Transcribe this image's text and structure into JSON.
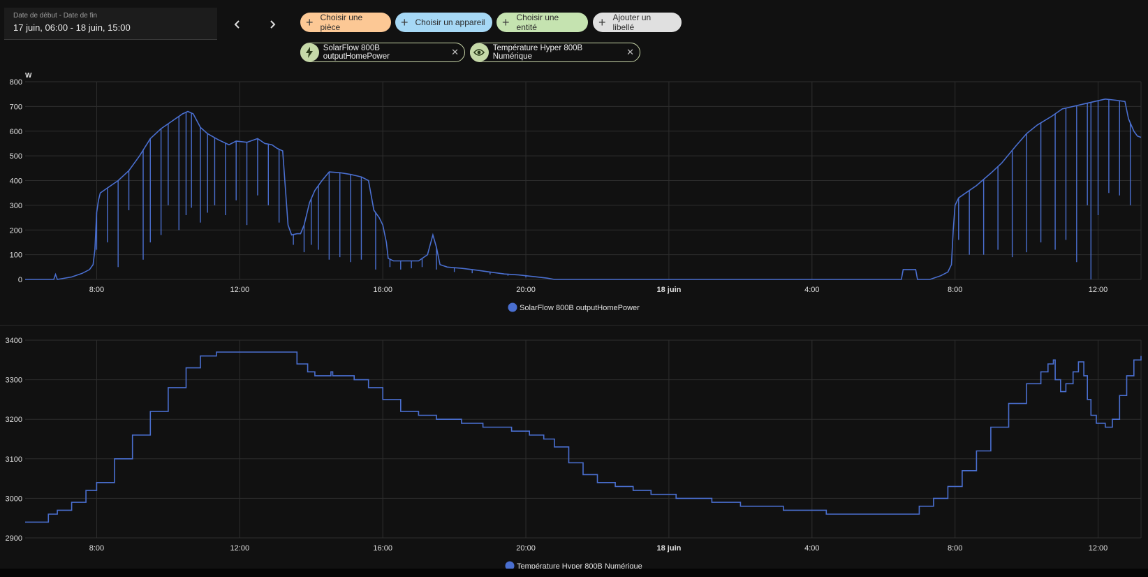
{
  "date_range": {
    "label": "Date de début - Date de fin",
    "value": "17 juin, 06:00 - 18 juin, 15:00"
  },
  "filters": {
    "room": "Choisir une pièce",
    "device": "Choisir un appareil",
    "entity": "Choisir une entité",
    "label": "Ajouter un libellé"
  },
  "selected": [
    {
      "name": "SolarFlow 800B outputHomePower",
      "icon": "lightning-icon"
    },
    {
      "name": "Température Hyper 800B Numérique",
      "icon": "eye-icon"
    }
  ],
  "colors": {
    "series": "#4a6fd0",
    "room_chip": "#fcc895",
    "device_chip": "#a6d8f5",
    "entity_chip": "#c5e3b0",
    "label_chip": "#e0e0e0"
  },
  "chart_data": [
    {
      "type": "line",
      "unit": "W",
      "ylim": [
        0,
        800
      ],
      "yticks": [
        "0",
        "100",
        "200",
        "300",
        "400",
        "500",
        "600",
        "700",
        "800"
      ],
      "xticks": [
        {
          "h": 8,
          "label": "8:00",
          "bold": false
        },
        {
          "h": 12,
          "label": "12:00",
          "bold": false
        },
        {
          "h": 16,
          "label": "16:00",
          "bold": false
        },
        {
          "h": 20,
          "label": "20:00",
          "bold": false
        },
        {
          "h": 24,
          "label": "18 juin",
          "bold": true
        },
        {
          "h": 28,
          "label": "4:00",
          "bold": false
        },
        {
          "h": 32,
          "label": "8:00",
          "bold": false
        },
        {
          "h": 36,
          "label": "12:00",
          "bold": false
        }
      ],
      "legend": "SolarFlow 800B outputHomePower",
      "series": [
        {
          "name": "SolarFlow 800B outputHomePower",
          "points": [
            [
              6.0,
              0
            ],
            [
              6.8,
              0
            ],
            [
              6.85,
              20
            ],
            [
              6.9,
              0
            ],
            [
              7.3,
              10
            ],
            [
              7.6,
              25
            ],
            [
              7.8,
              40
            ],
            [
              7.9,
              60
            ],
            [
              7.95,
              120
            ],
            [
              8.0,
              270
            ],
            [
              8.05,
              320
            ],
            [
              8.1,
              350
            ],
            [
              8.3,
              370
            ],
            [
              8.6,
              400
            ],
            [
              8.9,
              440
            ],
            [
              9.2,
              500
            ],
            [
              9.5,
              570
            ],
            [
              9.8,
              610
            ],
            [
              10.1,
              640
            ],
            [
              10.4,
              670
            ],
            [
              10.55,
              680
            ],
            [
              10.7,
              670
            ],
            [
              10.9,
              615
            ],
            [
              11.1,
              590
            ],
            [
              11.4,
              565
            ],
            [
              11.7,
              545
            ],
            [
              11.9,
              560
            ],
            [
              12.2,
              555
            ],
            [
              12.5,
              570
            ],
            [
              12.7,
              550
            ],
            [
              12.9,
              545
            ],
            [
              13.05,
              530
            ],
            [
              13.2,
              520
            ],
            [
              13.35,
              220
            ],
            [
              13.45,
              180
            ],
            [
              13.6,
              185
            ],
            [
              13.7,
              185
            ],
            [
              13.8,
              220
            ],
            [
              13.95,
              310
            ],
            [
              14.1,
              360
            ],
            [
              14.3,
              400
            ],
            [
              14.5,
              435
            ],
            [
              14.8,
              432
            ],
            [
              15.1,
              425
            ],
            [
              15.4,
              415
            ],
            [
              15.6,
              400
            ],
            [
              15.75,
              280
            ],
            [
              15.9,
              250
            ],
            [
              16.0,
              220
            ],
            [
              16.1,
              150
            ],
            [
              16.15,
              85
            ],
            [
              16.3,
              75
            ],
            [
              16.6,
              75
            ],
            [
              17.0,
              75
            ],
            [
              17.25,
              100
            ],
            [
              17.4,
              180
            ],
            [
              17.5,
              130
            ],
            [
              17.6,
              60
            ],
            [
              17.8,
              50
            ],
            [
              18.2,
              45
            ],
            [
              18.6,
              38
            ],
            [
              19.0,
              30
            ],
            [
              19.4,
              22
            ],
            [
              19.8,
              18
            ],
            [
              20.2,
              12
            ],
            [
              20.6,
              5
            ],
            [
              20.8,
              0
            ],
            [
              23.8,
              0
            ],
            [
              30.5,
              0
            ],
            [
              30.55,
              40
            ],
            [
              30.9,
              40
            ],
            [
              30.95,
              0
            ],
            [
              31.3,
              0
            ],
            [
              31.6,
              15
            ],
            [
              31.8,
              30
            ],
            [
              31.9,
              60
            ],
            [
              31.95,
              200
            ],
            [
              32.0,
              300
            ],
            [
              32.1,
              330
            ],
            [
              32.3,
              350
            ],
            [
              32.6,
              380
            ],
            [
              33.0,
              430
            ],
            [
              33.3,
              470
            ],
            [
              33.7,
              540
            ],
            [
              34.0,
              590
            ],
            [
              34.3,
              625
            ],
            [
              34.7,
              660
            ],
            [
              35.0,
              690
            ],
            [
              35.3,
              700
            ],
            [
              35.6,
              710
            ],
            [
              35.9,
              720
            ],
            [
              36.2,
              730
            ],
            [
              36.5,
              725
            ],
            [
              36.75,
              720
            ],
            [
              36.85,
              650
            ],
            [
              37.0,
              600
            ],
            [
              37.1,
              580
            ],
            [
              37.2,
              575
            ]
          ],
          "dips": [
            [
              8.0,
              120
            ],
            [
              8.3,
              150
            ],
            [
              8.6,
              50
            ],
            [
              8.9,
              280
            ],
            [
              9.3,
              80
            ],
            [
              9.5,
              150
            ],
            [
              9.8,
              180
            ],
            [
              10.0,
              300
            ],
            [
              10.3,
              200
            ],
            [
              10.5,
              260
            ],
            [
              10.65,
              290
            ],
            [
              10.9,
              230
            ],
            [
              11.1,
              270
            ],
            [
              11.3,
              300
            ],
            [
              11.6,
              260
            ],
            [
              11.9,
              320
            ],
            [
              12.2,
              220
            ],
            [
              12.5,
              340
            ],
            [
              12.8,
              300
            ],
            [
              13.1,
              230
            ],
            [
              13.5,
              140
            ],
            [
              13.8,
              110
            ],
            [
              14.0,
              140
            ],
            [
              14.2,
              120
            ],
            [
              14.5,
              80
            ],
            [
              14.8,
              90
            ],
            [
              15.1,
              70
            ],
            [
              15.4,
              80
            ],
            [
              15.8,
              40
            ],
            [
              16.2,
              50
            ],
            [
              16.5,
              40
            ],
            [
              16.8,
              45
            ],
            [
              17.1,
              50
            ],
            [
              17.5,
              40
            ],
            [
              18.0,
              30
            ],
            [
              18.5,
              25
            ],
            [
              19.0,
              20
            ],
            [
              19.5,
              15
            ],
            [
              20.0,
              8
            ],
            [
              32.1,
              160
            ],
            [
              32.4,
              100
            ],
            [
              32.8,
              100
            ],
            [
              33.2,
              120
            ],
            [
              33.6,
              90
            ],
            [
              34.0,
              110
            ],
            [
              34.4,
              150
            ],
            [
              34.8,
              120
            ],
            [
              35.1,
              160
            ],
            [
              35.4,
              70
            ],
            [
              35.7,
              300
            ],
            [
              35.8,
              0
            ],
            [
              36.0,
              260
            ],
            [
              36.3,
              350
            ],
            [
              36.6,
              340
            ],
            [
              36.9,
              300
            ]
          ]
        }
      ]
    },
    {
      "type": "line",
      "ylim": [
        2900,
        3400
      ],
      "yticks": [
        "2900",
        "3000",
        "3100",
        "3200",
        "3300",
        "3400"
      ],
      "xticks": [
        {
          "h": 8,
          "label": "8:00",
          "bold": false
        },
        {
          "h": 12,
          "label": "12:00",
          "bold": false
        },
        {
          "h": 16,
          "label": "16:00",
          "bold": false
        },
        {
          "h": 20,
          "label": "20:00",
          "bold": false
        },
        {
          "h": 24,
          "label": "18 juin",
          "bold": true
        },
        {
          "h": 28,
          "label": "4:00",
          "bold": false
        },
        {
          "h": 32,
          "label": "8:00",
          "bold": false
        },
        {
          "h": 36,
          "label": "12:00",
          "bold": false
        }
      ],
      "legend": "Température Hyper 800B Numérique",
      "series": [
        {
          "name": "Température Hyper 800B Numérique",
          "points": [
            [
              6.0,
              2940
            ],
            [
              6.6,
              2940
            ],
            [
              6.65,
              2960
            ],
            [
              6.9,
              2970
            ],
            [
              7.3,
              2990
            ],
            [
              7.7,
              3020
            ],
            [
              8.0,
              3040
            ],
            [
              8.5,
              3100
            ],
            [
              9.0,
              3160
            ],
            [
              9.5,
              3220
            ],
            [
              10.0,
              3280
            ],
            [
              10.5,
              3330
            ],
            [
              10.9,
              3360
            ],
            [
              11.3,
              3360
            ],
            [
              11.35,
              3370
            ],
            [
              12.5,
              3370
            ],
            [
              13.4,
              3370
            ],
            [
              13.6,
              3340
            ],
            [
              13.9,
              3320
            ],
            [
              14.1,
              3310
            ],
            [
              14.5,
              3310
            ],
            [
              14.55,
              3320
            ],
            [
              14.6,
              3310
            ],
            [
              14.9,
              3310
            ],
            [
              15.2,
              3300
            ],
            [
              15.6,
              3280
            ],
            [
              16.0,
              3250
            ],
            [
              16.5,
              3220
            ],
            [
              17.0,
              3210
            ],
            [
              17.5,
              3200
            ],
            [
              18.2,
              3190
            ],
            [
              18.8,
              3180
            ],
            [
              19.6,
              3170
            ],
            [
              20.1,
              3160
            ],
            [
              20.5,
              3150
            ],
            [
              20.8,
              3130
            ],
            [
              21.2,
              3090
            ],
            [
              21.6,
              3060
            ],
            [
              22.0,
              3040
            ],
            [
              22.5,
              3030
            ],
            [
              23.0,
              3020
            ],
            [
              23.5,
              3010
            ],
            [
              24.2,
              3000
            ],
            [
              25.2,
              2990
            ],
            [
              26.0,
              2980
            ],
            [
              27.2,
              2970
            ],
            [
              28.4,
              2960
            ],
            [
              30.7,
              2960
            ],
            [
              31.0,
              2980
            ],
            [
              31.4,
              3000
            ],
            [
              31.8,
              3030
            ],
            [
              32.2,
              3070
            ],
            [
              32.6,
              3120
            ],
            [
              33.0,
              3180
            ],
            [
              33.5,
              3240
            ],
            [
              34.0,
              3290
            ],
            [
              34.4,
              3320
            ],
            [
              34.6,
              3340
            ],
            [
              34.75,
              3350
            ],
            [
              34.8,
              3300
            ],
            [
              34.95,
              3270
            ],
            [
              35.1,
              3290
            ],
            [
              35.3,
              3320
            ],
            [
              35.45,
              3345
            ],
            [
              35.6,
              3310
            ],
            [
              35.7,
              3250
            ],
            [
              35.8,
              3210
            ],
            [
              35.95,
              3190
            ],
            [
              36.2,
              3180
            ],
            [
              36.4,
              3200
            ],
            [
              36.6,
              3260
            ],
            [
              36.8,
              3310
            ],
            [
              37.0,
              3350
            ],
            [
              37.2,
              3360
            ]
          ]
        }
      ]
    }
  ]
}
